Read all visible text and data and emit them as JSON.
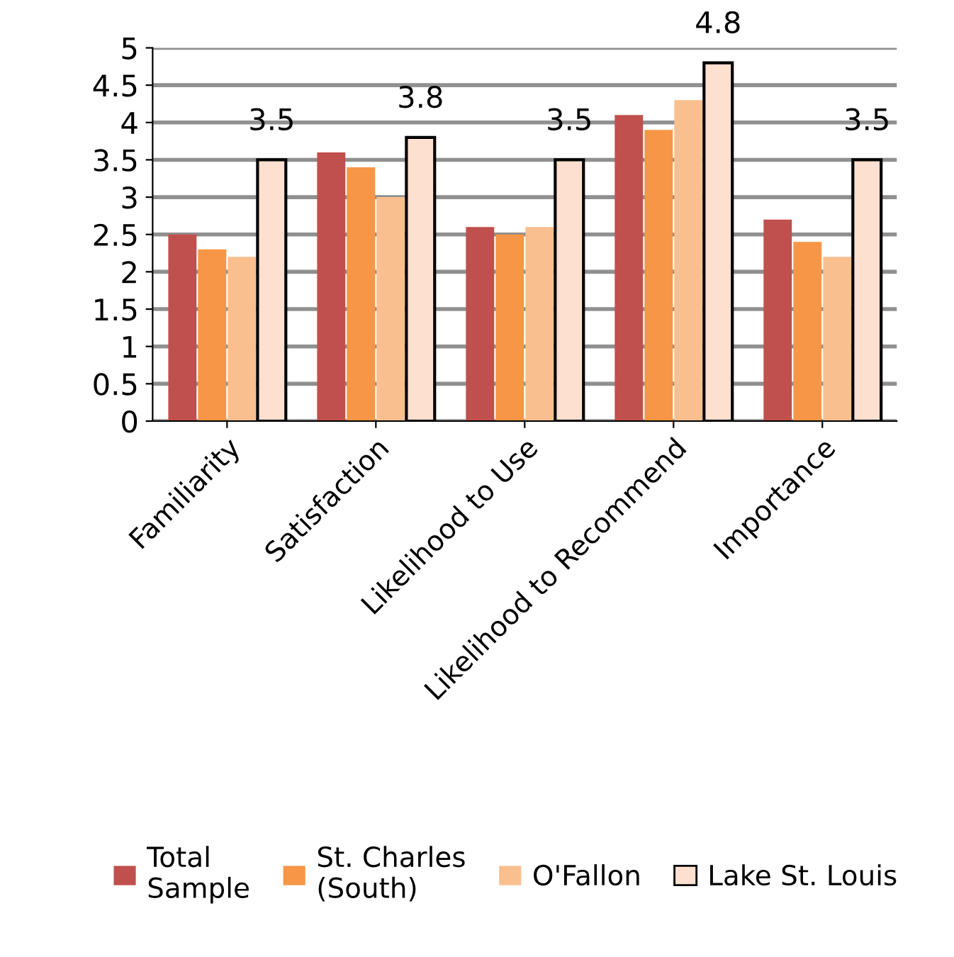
{
  "chart_data": {
    "type": "bar",
    "categories": [
      "Familiarity",
      "Satisfaction",
      "Likelihood to Use",
      "Likelihood to Recommend",
      "Importance"
    ],
    "series": [
      {
        "name": "Total\nSample",
        "color": "#c0504d",
        "values": [
          2.5,
          3.6,
          2.6,
          4.1,
          2.7
        ]
      },
      {
        "name": "St. Charles\n(South)",
        "color": "#f79646",
        "values": [
          2.3,
          3.4,
          2.5,
          3.9,
          2.4
        ]
      },
      {
        "name": "O'Fallon",
        "color": "#fabf8f",
        "values": [
          2.2,
          3.0,
          2.6,
          4.3,
          2.2
        ]
      },
      {
        "name": "Lake St. Louis",
        "color": "#fde0d0",
        "values": [
          3.5,
          3.8,
          3.5,
          4.8,
          3.5
        ],
        "value_labels": [
          "3.5",
          "3.8",
          "3.5",
          "4.8",
          "3.5"
        ]
      }
    ],
    "ylim": [
      0,
      5
    ],
    "yticks": [
      0,
      0.5,
      1,
      1.5,
      2,
      2.5,
      3,
      3.5,
      4,
      4.5,
      5
    ],
    "grid": "y",
    "legend": "bottom"
  }
}
